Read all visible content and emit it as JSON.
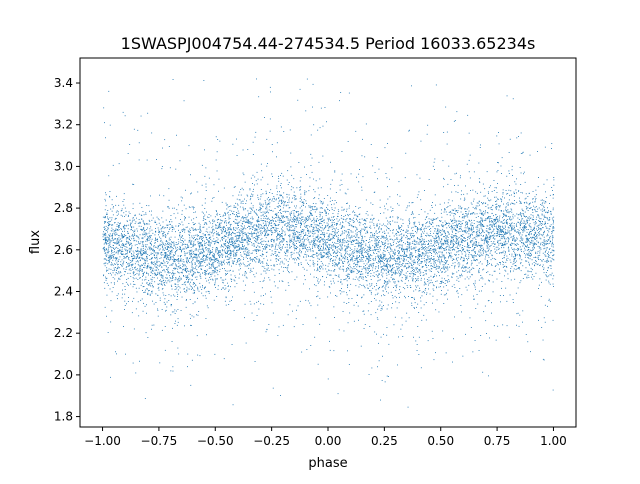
{
  "chart_data": {
    "type": "scatter",
    "title": "1SWASPJ004754.44-274534.5 Period 16033.65234s",
    "xlabel": "phase",
    "ylabel": "flux",
    "xlim": [
      -1.1,
      1.1
    ],
    "ylim": [
      1.75,
      3.52
    ],
    "xticks": [
      -1.0,
      -0.75,
      -0.5,
      -0.25,
      0.0,
      0.25,
      0.5,
      0.75,
      1.0
    ],
    "xtick_labels": [
      "−1.00",
      "−0.75",
      "−0.50",
      "−0.25",
      "0.00",
      "0.25",
      "0.50",
      "0.75",
      "1.00"
    ],
    "yticks": [
      1.8,
      2.0,
      2.2,
      2.4,
      2.6,
      2.8,
      3.0,
      3.2,
      3.4
    ],
    "ytick_labels": [
      "1.8",
      "2.0",
      "2.2",
      "2.4",
      "2.6",
      "2.8",
      "3.0",
      "3.2",
      "3.4"
    ],
    "grid": false,
    "marker_color": "#1f77b4",
    "phase_binned_mean_flux": {
      "phase": [
        -1.0,
        -0.875,
        -0.75,
        -0.625,
        -0.5,
        -0.375,
        -0.25,
        -0.125,
        0.0,
        0.125,
        0.25,
        0.375,
        0.5,
        0.625,
        0.75,
        0.875,
        1.0
      ],
      "flux": [
        2.63,
        2.6,
        2.57,
        2.57,
        2.6,
        2.66,
        2.7,
        2.69,
        2.64,
        2.6,
        2.57,
        2.57,
        2.61,
        2.66,
        2.7,
        2.68,
        2.64
      ]
    },
    "flux_scatter_std": 0.1,
    "flux_range": [
      1.84,
      3.44
    ]
  }
}
